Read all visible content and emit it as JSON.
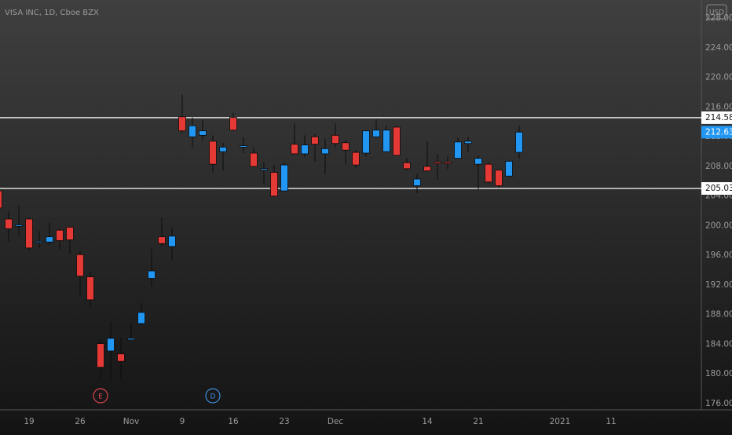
{
  "chart_data": {
    "type": "candlestick",
    "title": "VISA INC, 1D, Cboe BZX",
    "currency": "USD",
    "categories": [
      null,
      null,
      null,
      "19",
      null,
      null,
      null,
      null,
      "26",
      null,
      null,
      null,
      null,
      "Nov",
      null,
      null,
      null,
      null,
      "9",
      null,
      null,
      null,
      null,
      "16",
      null,
      null,
      null,
      null,
      "23",
      null,
      null,
      null,
      null,
      "Dec",
      null,
      null,
      null,
      null,
      null,
      null,
      null,
      null,
      "14",
      null,
      null,
      null,
      null,
      "21",
      null,
      null,
      null,
      null,
      null,
      null,
      null,
      "2021",
      null,
      null,
      null,
      null,
      "11",
      null,
      null,
      null,
      null,
      null,
      null,
      null,
      null
    ],
    "open": [
      204.7,
      200.9,
      199.9,
      200.9,
      197.8,
      197.8,
      199.4,
      199.8,
      196.1,
      193.1,
      184.1,
      183.1,
      182.7,
      184.6,
      186.8,
      192.9,
      198.5,
      197.2,
      214.7,
      212.0,
      212.2,
      211.4,
      210.0,
      214.6,
      210.6,
      209.8,
      207.5,
      207.2,
      204.7,
      211.0,
      209.7,
      212.0,
      209.7,
      212.2,
      211.2,
      209.9,
      209.8,
      212.0,
      210.0,
      213.3,
      208.5,
      205.4,
      208.0,
      208.6,
      208.6,
      209.1,
      211.1,
      208.3,
      208.3,
      207.5,
      206.7,
      209.9,
      null,
      null,
      null,
      null,
      null,
      null,
      null,
      null,
      null,
      null,
      null,
      null,
      null,
      null,
      null,
      null,
      null
    ],
    "high": [
      205.0,
      201.9,
      202.7,
      201.1,
      199.3,
      200.4,
      199.7,
      199.8,
      196.6,
      193.8,
      184.7,
      187.0,
      184.9,
      186.9,
      189.6,
      196.9,
      201.1,
      199.8,
      217.7,
      214.6,
      214.3,
      212.2,
      211.2,
      215.2,
      211.9,
      210.5,
      208.6,
      208.2,
      208.5,
      213.8,
      212.2,
      212.4,
      211.7,
      213.8,
      211.6,
      210.2,
      212.8,
      214.4,
      213.5,
      213.5,
      209.1,
      207.0,
      211.4,
      209.7,
      209.4,
      211.9,
      212.0,
      209.4,
      208.5,
      207.5,
      208.7,
      213.5,
      null,
      null,
      null,
      null,
      null,
      null,
      null,
      null,
      null,
      null,
      null,
      null,
      null,
      null,
      null,
      null,
      null
    ],
    "low": [
      201.9,
      197.8,
      198.7,
      196.6,
      197.0,
      197.4,
      196.8,
      196.2,
      190.6,
      189.1,
      179.2,
      179.3,
      179.2,
      184.6,
      186.6,
      191.8,
      197.3,
      195.4,
      212.5,
      210.6,
      211.5,
      207.2,
      207.4,
      212.8,
      209.8,
      207.9,
      205.6,
      203.9,
      204.7,
      209.7,
      209.3,
      208.7,
      206.9,
      210.6,
      208.3,
      207.8,
      209.3,
      211.9,
      210.0,
      209.5,
      207.5,
      204.4,
      207.3,
      206.2,
      207.6,
      209.0,
      210.0,
      204.9,
      205.7,
      205.1,
      206.7,
      209.1,
      null,
      null,
      null,
      null,
      null,
      null,
      null,
      null,
      null,
      null,
      null,
      null,
      null,
      null,
      null,
      null,
      null
    ],
    "close": [
      202.4,
      199.6,
      200.1,
      197.0,
      197.9,
      198.5,
      198.0,
      198.1,
      193.2,
      190.0,
      180.9,
      184.8,
      181.7,
      184.8,
      188.3,
      193.9,
      197.6,
      198.6,
      212.8,
      213.5,
      212.8,
      208.3,
      210.6,
      212.9,
      210.8,
      208.0,
      207.7,
      204.0,
      208.2,
      209.7,
      210.9,
      211.0,
      210.4,
      211.1,
      210.2,
      208.2,
      212.8,
      212.9,
      212.9,
      209.5,
      207.7,
      206.3,
      207.4,
      208.4,
      208.4,
      211.3,
      211.4,
      209.1,
      205.9,
      205.4,
      208.7,
      212.63,
      null,
      null,
      null,
      null,
      null,
      null,
      null,
      null,
      null,
      null,
      null,
      null,
      null,
      null,
      null,
      null,
      null
    ],
    "events": [
      null,
      null,
      null,
      null,
      null,
      null,
      null,
      null,
      null,
      null,
      {
        "label": "E",
        "color": "#e0454f"
      },
      null,
      null,
      null,
      null,
      null,
      null,
      null,
      null,
      null,
      null,
      {
        "label": "D",
        "color": "#3d8fe0"
      },
      null,
      null,
      null,
      null,
      null,
      null,
      null,
      null,
      null,
      null,
      null,
      null,
      null,
      null,
      null,
      null,
      null,
      null,
      null,
      null,
      null,
      null,
      null,
      null,
      null,
      null,
      null,
      null,
      null,
      null,
      null,
      null,
      null,
      null,
      null,
      null,
      null,
      null,
      null,
      null,
      null,
      null,
      null,
      null,
      null,
      null,
      null
    ],
    "up_color": "#2196f3",
    "down_color": "#e53935",
    "wick_color": "#0c0c0c",
    "horizontal_lines": [
      214.58,
      205.03
    ],
    "ylim": [
      175.15,
      230.46
    ],
    "yticks": [
      {
        "value": 176,
        "label": "176.00"
      },
      {
        "value": 180,
        "label": "180.00"
      },
      {
        "value": 184,
        "label": "184.00"
      },
      {
        "value": 188,
        "label": "188.00"
      },
      {
        "value": 192,
        "label": "192.00"
      },
      {
        "value": 196,
        "label": "196.00"
      },
      {
        "value": 200,
        "label": "200.00"
      },
      {
        "value": 204,
        "label": "204.00"
      },
      {
        "value": 208,
        "label": "208.00"
      },
      {
        "value": 212,
        "label": "212.00"
      },
      {
        "value": 216,
        "label": "216.00"
      },
      {
        "value": 220,
        "label": "220.00"
      },
      {
        "value": 224,
        "label": "224.00"
      },
      {
        "value": 228,
        "label": "228.00"
      }
    ],
    "grid": false
  }
}
